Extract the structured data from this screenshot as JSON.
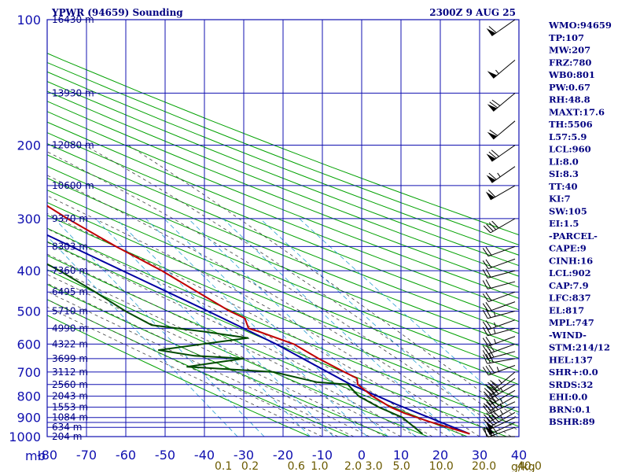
{
  "header": {
    "station": "YPWR (94659) Sounding",
    "time": "2300Z  9 AUG 25"
  },
  "chart_data": {
    "type": "skew-t",
    "pressure_unit": "mb",
    "mixing_unit": "g/kg",
    "pressure_ticks": [
      100,
      200,
      300,
      400,
      500,
      600,
      700,
      800,
      900,
      1000
    ],
    "pressure_grid": [
      100,
      150,
      200,
      250,
      300,
      350,
      400,
      450,
      500,
      550,
      600,
      650,
      700,
      750,
      800,
      850,
      900,
      925,
      950,
      1000
    ],
    "temp_ticks": [
      -80,
      -70,
      -60,
      -50,
      -40,
      -30,
      -20,
      -10,
      0,
      10,
      20,
      30,
      40
    ],
    "mixing_ratio_ticks": [
      "0.1",
      "0.2",
      "0.6",
      "1.0",
      "2.0",
      "3.0",
      "5.0",
      "10.0",
      "20.0",
      "40.0"
    ],
    "heights": [
      {
        "p": 100,
        "label": "16430 m"
      },
      {
        "p": 150,
        "label": "13930 m"
      },
      {
        "p": 200,
        "label": "12080 m"
      },
      {
        "p": 250,
        "label": "10600 m"
      },
      {
        "p": 300,
        "label": "9370 m"
      },
      {
        "p": 350,
        "label": "8303 m"
      },
      {
        "p": 400,
        "label": "7360 m"
      },
      {
        "p": 450,
        "label": "6495 m"
      },
      {
        "p": 500,
        "label": "5710 m"
      },
      {
        "p": 550,
        "label": "4990 m"
      },
      {
        "p": 600,
        "label": "4322 m"
      },
      {
        "p": 650,
        "label": "3699 m"
      },
      {
        "p": 700,
        "label": "3112 m"
      },
      {
        "p": 750,
        "label": "2560 m"
      },
      {
        "p": 800,
        "label": "2043 m"
      },
      {
        "p": 850,
        "label": "1553 m"
      },
      {
        "p": 900,
        "label": "1084 m"
      },
      {
        "p": 950,
        "label": "634 m"
      },
      {
        "p": 1000,
        "label": "204 m"
      }
    ],
    "temperature": [
      {
        "p": 985,
        "t": 18.0
      },
      {
        "p": 960,
        "t": 15.0
      },
      {
        "p": 920,
        "t": 10.0
      },
      {
        "p": 880,
        "t": 5.5
      },
      {
        "p": 850,
        "t": 3.0
      },
      {
        "p": 800,
        "t": 0.5
      },
      {
        "p": 750,
        "t": -1.0
      },
      {
        "p": 725,
        "t": 0.0
      },
      {
        "p": 700,
        "t": -2.0
      },
      {
        "p": 650,
        "t": -6.0
      },
      {
        "p": 600,
        "t": -9.5
      },
      {
        "p": 560,
        "t": -16.0
      },
      {
        "p": 550,
        "t": -18.0
      },
      {
        "p": 520,
        "t": -17.0
      },
      {
        "p": 500,
        "t": -19.5
      },
      {
        "p": 400,
        "t": -29.0
      },
      {
        "p": 350,
        "t": -36.0
      },
      {
        "p": 300,
        "t": -43.0
      },
      {
        "p": 250,
        "t": -50.0
      },
      {
        "p": 200,
        "t": -56.5
      },
      {
        "p": 150,
        "t": -63.0
      },
      {
        "p": 100,
        "t": -69.0
      }
    ],
    "dewpoint": [
      {
        "p": 985,
        "t": 6.0
      },
      {
        "p": 900,
        "t": 4.0
      },
      {
        "p": 850,
        "t": 0.0
      },
      {
        "p": 800,
        "t": -3.0
      },
      {
        "p": 750,
        "t": -3.5
      },
      {
        "p": 740,
        "t": -11.0
      },
      {
        "p": 700,
        "t": -20.0
      },
      {
        "p": 680,
        "t": -41.0
      },
      {
        "p": 650,
        "t": -25.0
      },
      {
        "p": 640,
        "t": -37.0
      },
      {
        "p": 620,
        "t": -45.0
      },
      {
        "p": 580,
        "t": -20.0
      },
      {
        "p": 560,
        "t": -30.0
      },
      {
        "p": 540,
        "t": -42.0
      },
      {
        "p": 500,
        "t": -46.0
      },
      {
        "p": 450,
        "t": -50.0
      },
      {
        "p": 400,
        "t": -55.0
      },
      {
        "p": 350,
        "t": -62.0
      },
      {
        "p": 300,
        "t": -65.0
      },
      {
        "p": 200,
        "t": -77.0
      },
      {
        "p": 150,
        "t": -88.0
      }
    ],
    "parcel": [
      {
        "p": 985,
        "t": 18.0
      },
      {
        "p": 902,
        "t": 11.0
      },
      {
        "p": 837,
        "t": 5.0
      },
      {
        "p": 747,
        "t": -3.0
      },
      {
        "p": 600,
        "t": -14.0
      },
      {
        "p": 500,
        "t": -25.0
      },
      {
        "p": 400,
        "t": -39.0
      },
      {
        "p": 300,
        "t": -57.0
      },
      {
        "p": 200,
        "t": -80.0
      }
    ],
    "wind_barbs": [
      {
        "p": 1000,
        "dir": 270,
        "spd": 15
      },
      {
        "p": 950,
        "dir": 250,
        "spd": 40
      },
      {
        "p": 925,
        "dir": 245,
        "spd": 50
      },
      {
        "p": 900,
        "dir": 245,
        "spd": 50
      },
      {
        "p": 875,
        "dir": 240,
        "spd": 45
      },
      {
        "p": 850,
        "dir": 240,
        "spd": 45
      },
      {
        "p": 825,
        "dir": 245,
        "spd": 45
      },
      {
        "p": 800,
        "dir": 240,
        "spd": 45
      },
      {
        "p": 775,
        "dir": 240,
        "spd": 40
      },
      {
        "p": 750,
        "dir": 240,
        "spd": 45
      },
      {
        "p": 725,
        "dir": 235,
        "spd": 40
      },
      {
        "p": 700,
        "dir": 230,
        "spd": 35
      },
      {
        "p": 675,
        "dir": 250,
        "spd": 35
      },
      {
        "p": 650,
        "dir": 260,
        "spd": 30
      },
      {
        "p": 625,
        "dir": 255,
        "spd": 30
      },
      {
        "p": 600,
        "dir": 250,
        "spd": 30
      },
      {
        "p": 575,
        "dir": 250,
        "spd": 25
      },
      {
        "p": 550,
        "dir": 255,
        "spd": 25
      },
      {
        "p": 525,
        "dir": 250,
        "spd": 25
      },
      {
        "p": 500,
        "dir": 255,
        "spd": 25
      },
      {
        "p": 475,
        "dir": 250,
        "spd": 20
      },
      {
        "p": 450,
        "dir": 250,
        "spd": 20
      },
      {
        "p": 425,
        "dir": 255,
        "spd": 20
      },
      {
        "p": 400,
        "dir": 255,
        "spd": 20
      },
      {
        "p": 375,
        "dir": 250,
        "spd": 20
      },
      {
        "p": 350,
        "dir": 250,
        "spd": 20
      },
      {
        "p": 300,
        "dir": 240,
        "spd": 40
      },
      {
        "p": 250,
        "dir": 240,
        "spd": 60
      },
      {
        "p": 225,
        "dir": 235,
        "spd": 65
      },
      {
        "p": 200,
        "dir": 235,
        "spd": 70
      },
      {
        "p": 175,
        "dir": 230,
        "spd": 60
      },
      {
        "p": 150,
        "dir": 230,
        "spd": 70
      },
      {
        "p": 125,
        "dir": 230,
        "spd": 55
      },
      {
        "p": 100,
        "dir": 235,
        "spd": 60
      }
    ],
    "colors": {
      "grid": "#1010b0",
      "dry_adiabat": "#00a000",
      "moist_adiabat": "#404040",
      "mixing_ratio": "#2aa0d0",
      "temperature": "#c00000",
      "dewpoint": "#004a00",
      "parcel": "#0000a0",
      "text": "#000080"
    }
  },
  "indices": [
    "WMO:94659",
    "TP:107",
    "MW:207",
    "FRZ:780",
    "WB0:801",
    "PW:0.67",
    "RH:48.8",
    "MAXT:17.6",
    "TH:5506",
    "L57:5.9",
    "LCL:960",
    "LI:8.0",
    "SI:8.3",
    "TT:40",
    "KI:7",
    "SW:105",
    "EI:1.5",
    "-PARCEL-",
    "CAPE:9",
    "CINH:16",
    "LCL:902",
    "CAP:7.9",
    "LFC:837",
    "EL:817",
    "MPL:747",
    "-WIND-",
    "STM:214/12",
    "HEL:137",
    "SHR+:0.0",
    "SRDS:32",
    "EHI:0.0",
    "BRN:0.1",
    "BSHR:89"
  ]
}
